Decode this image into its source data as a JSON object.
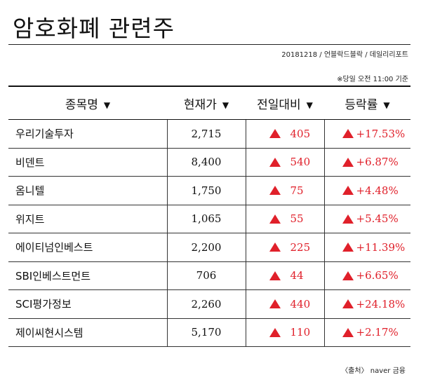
{
  "title": "암호화폐 관련주",
  "meta": "20181218 / 언블락드블락 / 데일리리포트",
  "note": "※당일 오전 11:00 기준",
  "headers": {
    "name": "종목명",
    "price": "현재가",
    "change": "전일대비",
    "rate": "등락률"
  },
  "sort_icon": "triangle-down-icon",
  "up_icon": "triangle-up-icon",
  "up_color": "#e0202a",
  "rows": [
    {
      "name": "우리기술투자",
      "price": "2,715",
      "change": "405",
      "rate": "+17.53%"
    },
    {
      "name": "비덴트",
      "price": "8,400",
      "change": "540",
      "rate": "+6.87%"
    },
    {
      "name": "옴니텔",
      "price": "1,750",
      "change": "75",
      "rate": "+4.48%"
    },
    {
      "name": "위지트",
      "price": "1,065",
      "change": "55",
      "rate": "+5.45%"
    },
    {
      "name": "에이티넘인베스트",
      "price": "2,200",
      "change": "225",
      "rate": "+11.39%"
    },
    {
      "name": "SBI인베스트먼트",
      "price": "706",
      "change": "44",
      "rate": "+6.65%"
    },
    {
      "name": "SCI평가정보",
      "price": "2,260",
      "change": "440",
      "rate": "+24.18%"
    },
    {
      "name": "제이씨현시스템",
      "price": "5,170",
      "change": "110",
      "rate": "+2.17%"
    }
  ],
  "source": "〈출처〉 naver 금융"
}
